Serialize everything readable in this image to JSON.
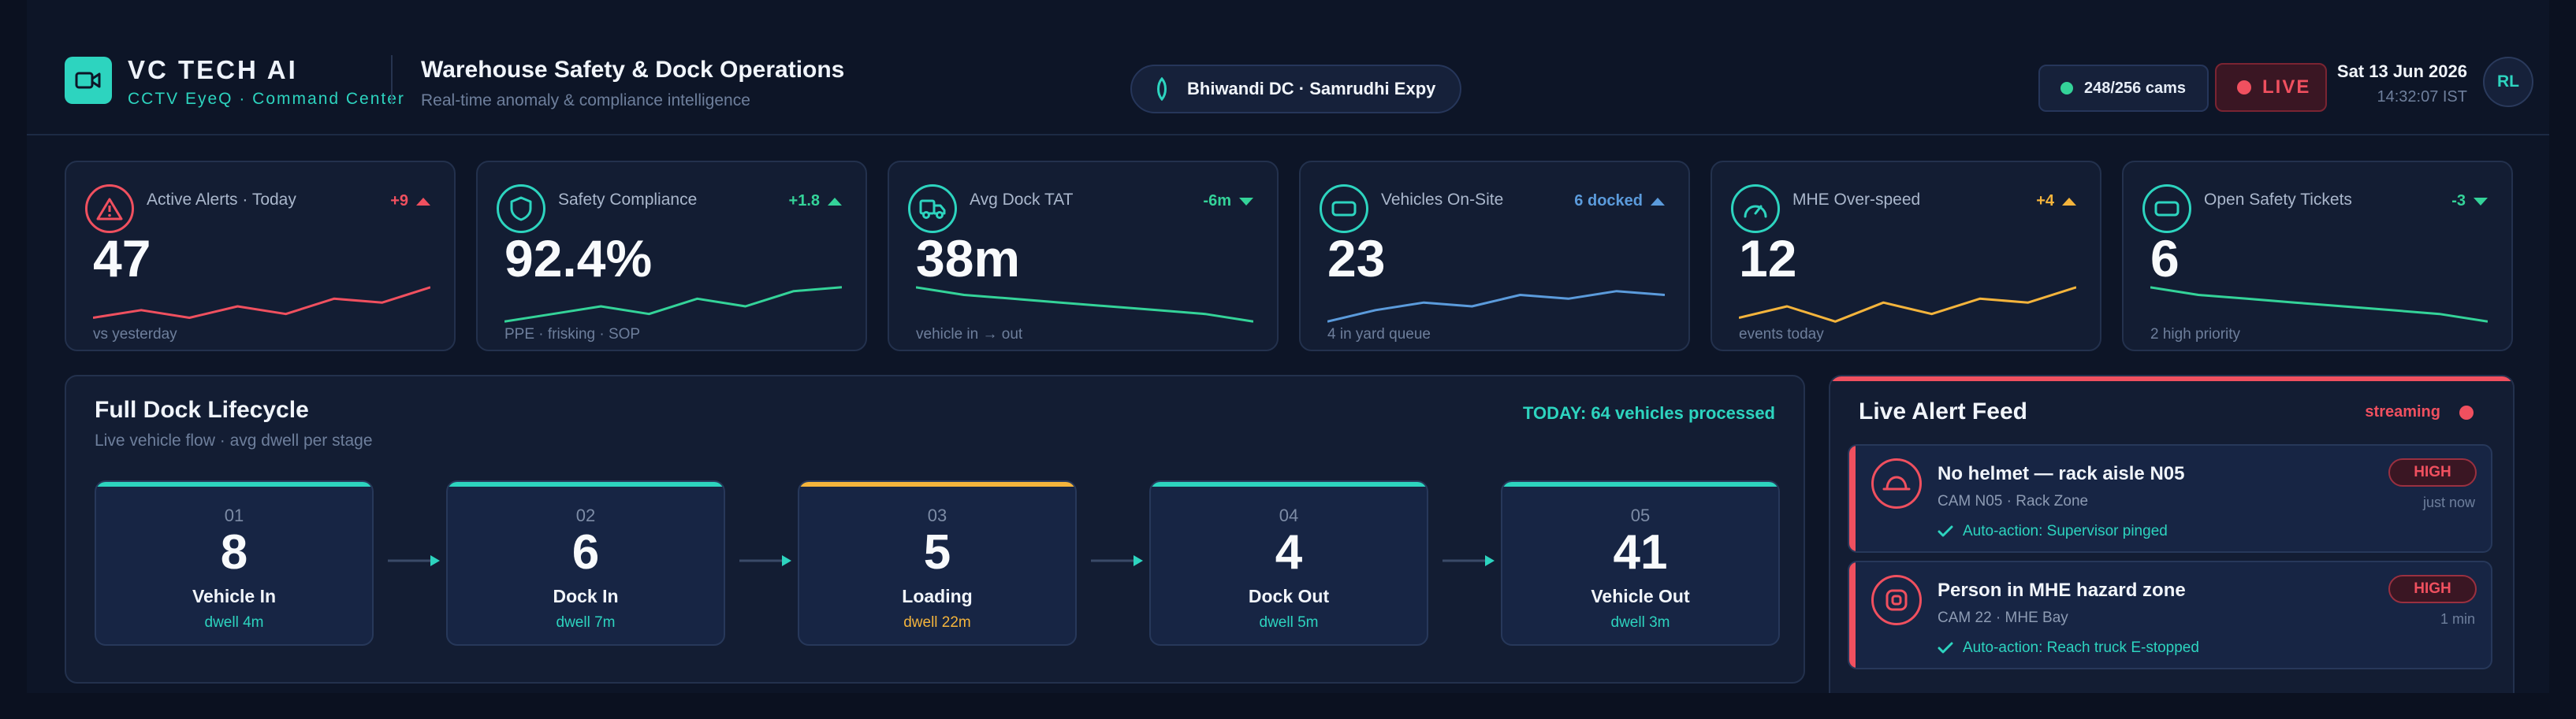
{
  "colors": {
    "accent": "#2dd4bf",
    "danger": "#f0505f",
    "warning": "#f4b43c",
    "info": "#5b9bdc",
    "success": "#34d399",
    "background": "#0d1527"
  },
  "header": {
    "brand": "VC TECH AI",
    "brand_sub": "CCTV EyeQ · Command Center",
    "brand_icon": "video-camera-icon",
    "title": "Warehouse Safety & Dock Operations",
    "subtitle": "Real-time anomaly & compliance intelligence",
    "location": "Bhiwandi DC · Samrudhi Expy",
    "cams": "248/256 cams",
    "live": "LIVE",
    "date": "Sat 13 Jun 2026",
    "time": "14:32:07 IST",
    "avatar": "RL"
  },
  "kpis": [
    {
      "icon": "warning-icon",
      "label": "Active Alerts · Today",
      "delta": "+9",
      "delta_dir": "up",
      "color": "#f0505f",
      "value": "47",
      "foot": "vs yesterday",
      "spark": [
        3,
        5,
        3,
        6,
        4,
        8,
        7,
        11
      ]
    },
    {
      "icon": "shield-icon",
      "label": "Safety Compliance",
      "delta": "+1.8",
      "delta_dir": "up",
      "color": "#34d399",
      "value": "92.4%",
      "foot": "PPE · frisking · SOP",
      "spark": [
        2,
        4,
        6,
        4,
        8,
        6,
        10,
        11
      ]
    },
    {
      "icon": "truck-icon",
      "label": "Avg Dock TAT",
      "delta": "-6m",
      "delta_dir": "down",
      "color": "#34d399",
      "value": "38m",
      "foot": "vehicle in → out",
      "spark": [
        11,
        9,
        8,
        7,
        6,
        5,
        4,
        2
      ]
    },
    {
      "icon": "vehicle-icon",
      "label": "Vehicles On-Site",
      "delta": "6 docked",
      "delta_dir": "up",
      "color": "#5b9bdc",
      "value": "23",
      "foot": "4 in yard queue",
      "spark": [
        2,
        5,
        7,
        6,
        9,
        8,
        10,
        9
      ]
    },
    {
      "icon": "speedometer-icon",
      "label": "MHE Over-speed",
      "delta": "+4",
      "delta_dir": "up",
      "color": "#f4b43c",
      "value": "12",
      "foot": "events today",
      "spark": [
        3,
        6,
        2,
        7,
        4,
        8,
        7,
        11
      ]
    },
    {
      "icon": "ticket-icon",
      "label": "Open Safety Tickets",
      "delta": "-3",
      "delta_dir": "down",
      "color": "#34d399",
      "value": "6",
      "foot": "2 high priority",
      "spark": [
        11,
        9,
        8,
        7,
        6,
        5,
        4,
        2
      ]
    }
  ],
  "lifecycle": {
    "title": "Full Dock Lifecycle",
    "subtitle": "Live vehicle flow · avg dwell per stage",
    "today": "TODAY: 64 vehicles processed",
    "stages": [
      {
        "num": "01",
        "count": "8",
        "name": "Vehicle In",
        "dwell": "dwell 4m",
        "color": "#2dd4bf"
      },
      {
        "num": "02",
        "count": "6",
        "name": "Dock In",
        "dwell": "dwell 7m",
        "color": "#2dd4bf"
      },
      {
        "num": "03",
        "count": "5",
        "name": "Loading",
        "dwell": "dwell 22m",
        "color": "#f4b43c"
      },
      {
        "num": "04",
        "count": "4",
        "name": "Dock Out",
        "dwell": "dwell 5m",
        "color": "#2dd4bf"
      },
      {
        "num": "05",
        "count": "41",
        "name": "Vehicle Out",
        "dwell": "dwell 3m",
        "color": "#2dd4bf"
      }
    ]
  },
  "feed": {
    "title": "Live Alert Feed",
    "status": "streaming",
    "alerts": [
      {
        "icon": "helmet-icon",
        "title": "No helmet — rack aisle N05",
        "meta": "CAM N05 · Rack Zone",
        "severity": "HIGH",
        "time": "just now",
        "action": "Auto-action: Supervisor pinged"
      },
      {
        "icon": "hazard-zone-icon",
        "title": "Person in MHE hazard zone",
        "meta": "CAM 22 · MHE Bay",
        "severity": "HIGH",
        "time": "1 min",
        "action": "Auto-action: Reach truck E-stopped"
      }
    ]
  }
}
